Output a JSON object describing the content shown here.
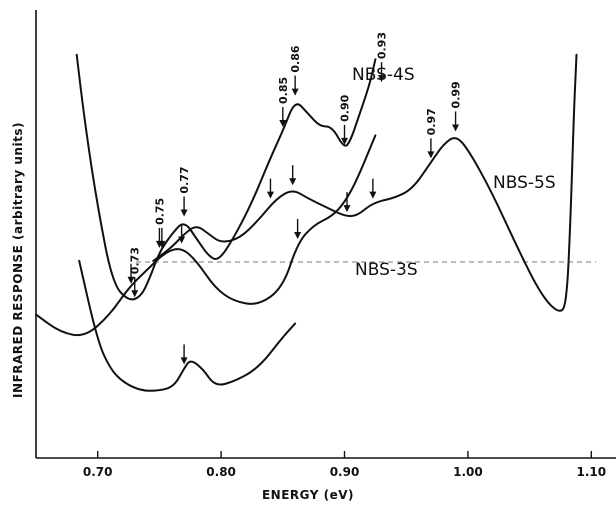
{
  "chart_data": {
    "type": "line",
    "title": "",
    "xlabel": "ENERGY (eV)",
    "ylabel": "INFRARED RESPONSE (arbitrary units)",
    "xlim": [
      0.65,
      1.12
    ],
    "x_ticks": [
      {
        "value": 0.7,
        "label": "0.70"
      },
      {
        "value": 0.8,
        "label": "0.80"
      },
      {
        "value": 0.9,
        "label": "0.90"
      },
      {
        "value": 1.0,
        "label": "1.00"
      },
      {
        "value": 1.1,
        "label": "1.10"
      }
    ],
    "ylim": [
      0,
      100
    ],
    "y_ticks_labeled": false,
    "grid": false,
    "series": [
      {
        "name": "NBS-4S",
        "x": [
          0.683,
          0.69,
          0.7,
          0.712,
          0.725,
          0.735,
          0.742,
          0.75,
          0.76,
          0.77,
          0.78,
          0.79,
          0.798,
          0.81,
          0.825,
          0.84,
          0.85,
          0.86,
          0.87,
          0.88,
          0.89,
          0.9,
          0.905,
          0.91,
          0.92,
          0.925
        ],
        "values": [
          90,
          74,
          56,
          39,
          35,
          36,
          40,
          46,
          50,
          53,
          49,
          45,
          44,
          49,
          57,
          67,
          73,
          80,
          77,
          74,
          74,
          69,
          71,
          75,
          83,
          89
        ],
        "label_text": "NBS-4S"
      },
      {
        "name": "NBS-5S",
        "x": [
          0.745,
          0.76,
          0.77,
          0.78,
          0.79,
          0.8,
          0.815,
          0.83,
          0.845,
          0.858,
          0.87,
          0.885,
          0.9,
          0.91,
          0.923,
          0.94,
          0.955,
          0.97,
          0.98,
          0.99,
          1.0,
          1.02,
          1.04,
          1.06,
          1.075,
          1.08,
          1.083,
          1.086,
          1.088
        ],
        "values": [
          44,
          47,
          50,
          52,
          50,
          48,
          49,
          53,
          58,
          60,
          58,
          56,
          54,
          54,
          57,
          58,
          60,
          66,
          70,
          72,
          69,
          59,
          47,
          36,
          32,
          35,
          52,
          78,
          90
        ],
        "label_text": "NBS-5S"
      },
      {
        "name": "NBS-3S",
        "x": [
          0.65,
          0.67,
          0.69,
          0.71,
          0.725,
          0.74,
          0.755,
          0.768,
          0.78,
          0.795,
          0.81,
          0.83,
          0.85,
          0.862,
          0.875,
          0.89,
          0.9,
          0.91,
          0.925
        ],
        "values": [
          32,
          28,
          27,
          32,
          38,
          42,
          46,
          47,
          44,
          38,
          35,
          34,
          38,
          48,
          52,
          54,
          57,
          62,
          72
        ],
        "label_text": "NBS-3S"
      },
      {
        "name": "lower curve",
        "x": [
          0.685,
          0.7,
          0.71,
          0.72,
          0.735,
          0.75,
          0.762,
          0.77,
          0.775,
          0.785,
          0.795,
          0.81,
          0.83,
          0.85,
          0.86
        ],
        "values": [
          44,
          26,
          20,
          17,
          15,
          15,
          16,
          20,
          22,
          20,
          16,
          17,
          20,
          27,
          30
        ],
        "label_text": ""
      }
    ],
    "annotations": [
      {
        "x": 0.73,
        "y": 35,
        "label": "0.73"
      },
      {
        "x": 0.75,
        "y": 46,
        "label": "0.75"
      },
      {
        "x": 0.77,
        "y": 53,
        "label": "0.77"
      },
      {
        "x": 0.85,
        "y": 73,
        "label": "0.85"
      },
      {
        "x": 0.86,
        "y": 80,
        "label": "0.86"
      },
      {
        "x": 0.9,
        "y": 69,
        "label": "0.90"
      },
      {
        "x": 0.93,
        "y": 83,
        "label": "0.93"
      },
      {
        "x": 0.97,
        "y": 66,
        "label": "0.97"
      },
      {
        "x": 0.99,
        "y": 72,
        "label": "0.99"
      },
      {
        "x": 0.84,
        "y": 57,
        "label": ""
      },
      {
        "x": 0.858,
        "y": 60,
        "label": ""
      },
      {
        "x": 0.902,
        "y": 54,
        "label": ""
      },
      {
        "x": 0.923,
        "y": 57,
        "label": ""
      },
      {
        "x": 0.727,
        "y": 38,
        "label": ""
      },
      {
        "x": 0.752,
        "y": 46,
        "label": ""
      },
      {
        "x": 0.768,
        "y": 47,
        "label": ""
      },
      {
        "x": 0.862,
        "y": 48,
        "label": ""
      },
      {
        "x": 0.77,
        "y": 20,
        "label": ""
      }
    ]
  }
}
